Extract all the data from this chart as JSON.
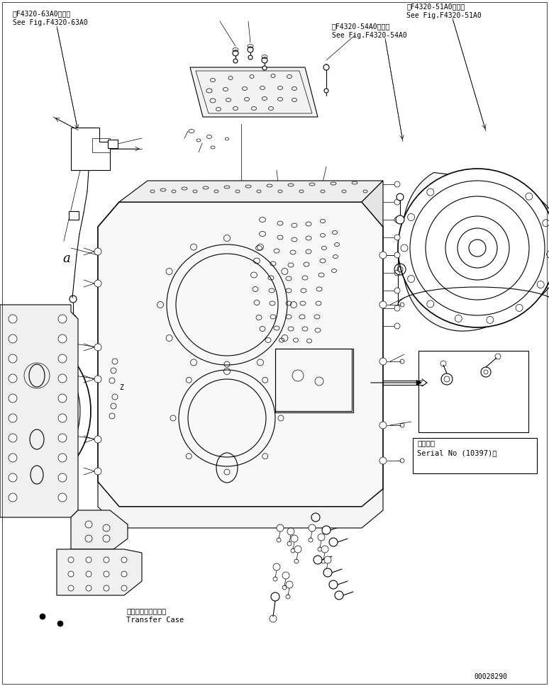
{
  "bg_color": "#ffffff",
  "line_color": "#000000",
  "fig_width": 7.74,
  "fig_height": 9.68,
  "dpi": 100,
  "annotations": {
    "top_left_line1": "第F4320-63A0図参照",
    "top_left_line2": "See Fig.F4320-63A0",
    "top_right_line1": "第F4320-51A0図参照",
    "top_right_line2": "See Fig.F4320-51A0",
    "mid_right_line1": "第F4320-54A0図参照",
    "mid_right_line2": "See Fig.F4320-54A0",
    "bottom_left_label1": "トランスファケース",
    "bottom_left_label2": "Transfer Case",
    "serial_label1": "適用号機",
    "serial_label2": "Serial No (10397)～",
    "doc_number": "00028290"
  }
}
